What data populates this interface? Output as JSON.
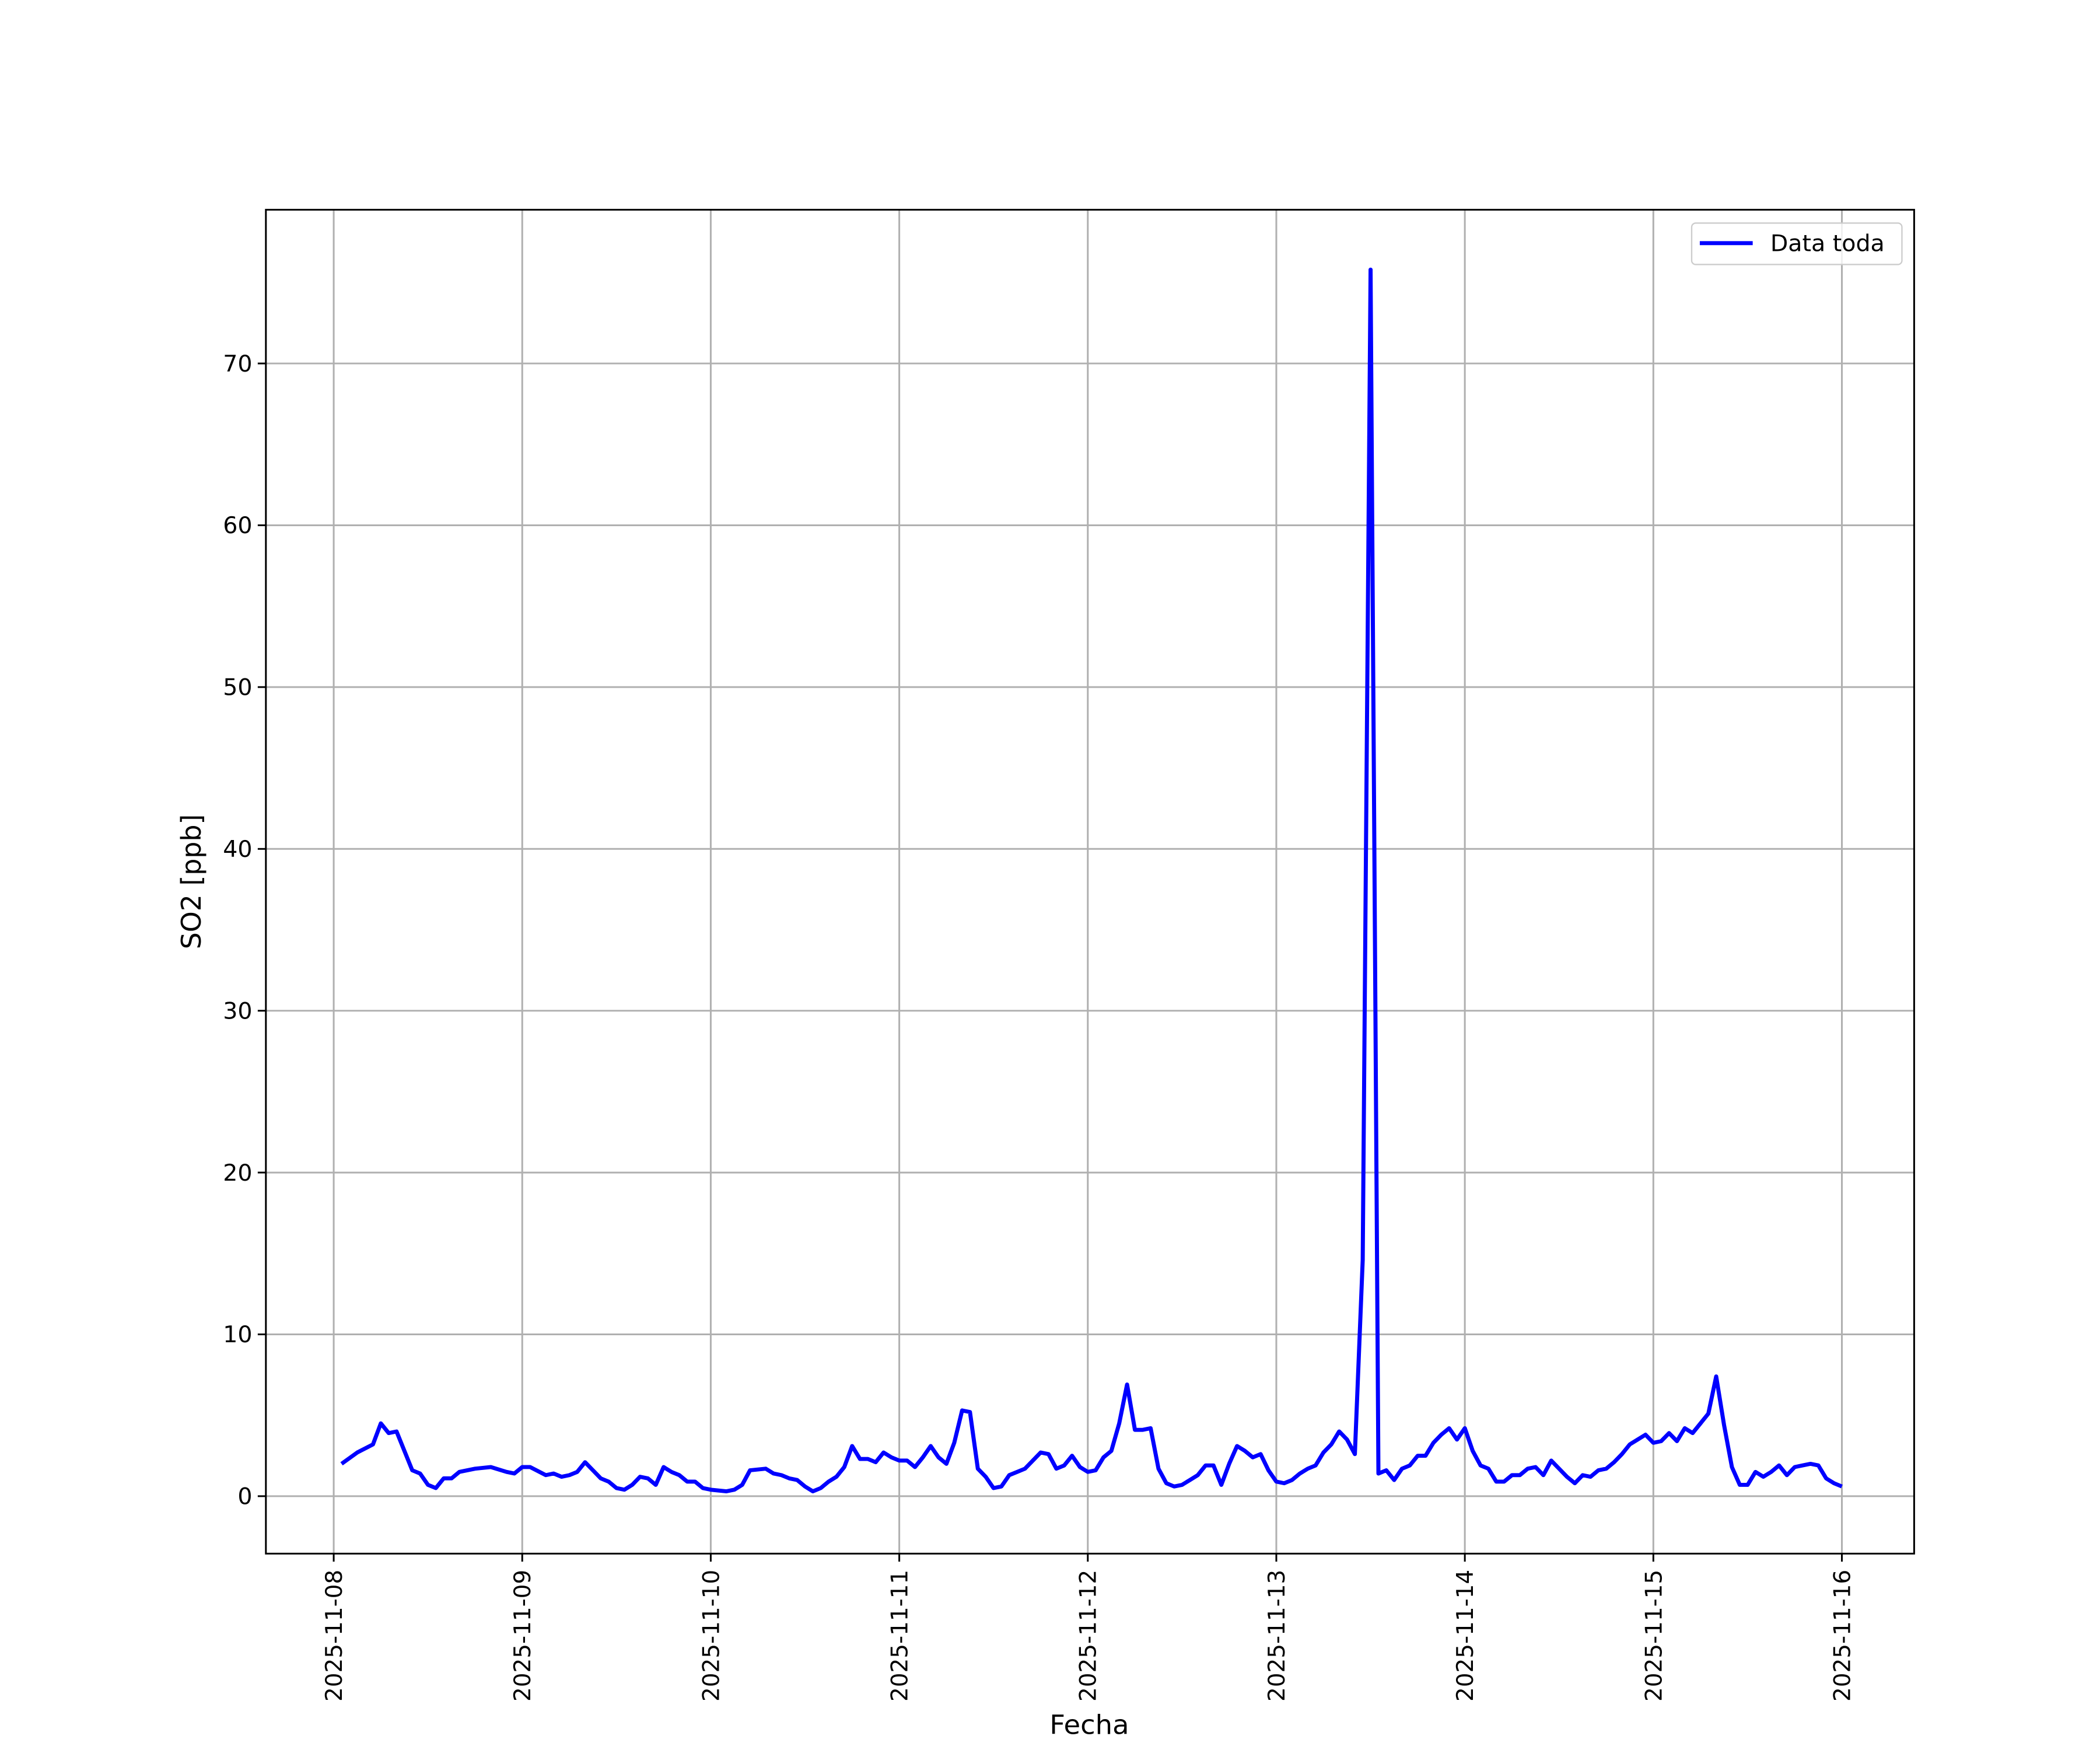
{
  "chart_data": {
    "type": "line",
    "xlabel": "Fecha",
    "ylabel": "SO2 [ppb]",
    "x": [
      "2025-11-08T01:00",
      "2025-11-08T03:00",
      "2025-11-08T05:00",
      "2025-11-08T06:00",
      "2025-11-08T07:00",
      "2025-11-08T08:00",
      "2025-11-08T10:00",
      "2025-11-08T11:00",
      "2025-11-08T12:00",
      "2025-11-08T13:00",
      "2025-11-08T14:00",
      "2025-11-08T15:00",
      "2025-11-08T16:00",
      "2025-11-08T18:00",
      "2025-11-08T20:00",
      "2025-11-08T22:00",
      "2025-11-08T23:00",
      "2025-11-09T00:00",
      "2025-11-09T01:00",
      "2025-11-09T03:00",
      "2025-11-09T04:00",
      "2025-11-09T05:00",
      "2025-11-09T06:00",
      "2025-11-09T07:00",
      "2025-11-09T08:00",
      "2025-11-09T09:00",
      "2025-11-09T10:00",
      "2025-11-09T11:00",
      "2025-11-09T12:00",
      "2025-11-09T13:00",
      "2025-11-09T14:00",
      "2025-11-09T15:00",
      "2025-11-09T16:00",
      "2025-11-09T17:00",
      "2025-11-09T18:00",
      "2025-11-09T19:00",
      "2025-11-09T20:00",
      "2025-11-09T21:00",
      "2025-11-09T22:00",
      "2025-11-09T23:00",
      "2025-11-10T00:00",
      "2025-11-10T02:00",
      "2025-11-10T03:00",
      "2025-11-10T04:00",
      "2025-11-10T05:00",
      "2025-11-10T07:00",
      "2025-11-10T08:00",
      "2025-11-10T09:00",
      "2025-11-10T10:00",
      "2025-11-10T11:00",
      "2025-11-10T12:00",
      "2025-11-10T13:00",
      "2025-11-10T14:00",
      "2025-11-10T15:00",
      "2025-11-10T16:00",
      "2025-11-10T17:00",
      "2025-11-10T18:00",
      "2025-11-10T19:00",
      "2025-11-10T20:00",
      "2025-11-10T21:00",
      "2025-11-10T22:00",
      "2025-11-10T23:00",
      "2025-11-11T00:00",
      "2025-11-11T01:00",
      "2025-11-11T02:00",
      "2025-11-11T03:00",
      "2025-11-11T04:00",
      "2025-11-11T05:00",
      "2025-11-11T06:00",
      "2025-11-11T07:00",
      "2025-11-11T08:00",
      "2025-11-11T09:00",
      "2025-11-11T10:00",
      "2025-11-11T11:00",
      "2025-11-11T12:00",
      "2025-11-11T13:00",
      "2025-11-11T14:00",
      "2025-11-11T15:00",
      "2025-11-11T16:00",
      "2025-11-11T17:00",
      "2025-11-11T18:00",
      "2025-11-11T19:00",
      "2025-11-11T20:00",
      "2025-11-11T21:00",
      "2025-11-11T22:00",
      "2025-11-11T23:00",
      "2025-11-12T00:00",
      "2025-11-12T01:00",
      "2025-11-12T02:00",
      "2025-11-12T03:00",
      "2025-11-12T04:00",
      "2025-11-12T05:00",
      "2025-11-12T06:00",
      "2025-11-12T07:00",
      "2025-11-12T08:00",
      "2025-11-12T09:00",
      "2025-11-12T10:00",
      "2025-11-12T11:00",
      "2025-11-12T12:00",
      "2025-11-12T13:00",
      "2025-11-12T14:00",
      "2025-11-12T15:00",
      "2025-11-12T16:00",
      "2025-11-12T17:00",
      "2025-11-12T18:00",
      "2025-11-12T19:00",
      "2025-11-12T20:00",
      "2025-11-12T21:00",
      "2025-11-12T22:00",
      "2025-11-12T23:00",
      "2025-11-13T00:00",
      "2025-11-13T01:00",
      "2025-11-13T02:00",
      "2025-11-13T03:00",
      "2025-11-13T04:00",
      "2025-11-13T05:00",
      "2025-11-13T06:00",
      "2025-11-13T07:00",
      "2025-11-13T08:00",
      "2025-11-13T09:00",
      "2025-11-13T10:00",
      "2025-11-13T11:00",
      "2025-11-13T12:00",
      "2025-11-13T13:00",
      "2025-11-13T14:00",
      "2025-11-13T15:00",
      "2025-11-13T16:00",
      "2025-11-13T17:00",
      "2025-11-13T18:00",
      "2025-11-13T19:00",
      "2025-11-13T20:00",
      "2025-11-13T21:00",
      "2025-11-13T22:00",
      "2025-11-13T23:00",
      "2025-11-14T00:00",
      "2025-11-14T01:00",
      "2025-11-14T02:00",
      "2025-11-14T03:00",
      "2025-11-14T04:00",
      "2025-11-14T05:00",
      "2025-11-14T06:00",
      "2025-11-14T07:00",
      "2025-11-14T08:00",
      "2025-11-14T09:00",
      "2025-11-14T10:00",
      "2025-11-14T11:00",
      "2025-11-14T12:00",
      "2025-11-14T13:00",
      "2025-11-14T14:00",
      "2025-11-14T15:00",
      "2025-11-14T16:00",
      "2025-11-14T17:00",
      "2025-11-14T18:00",
      "2025-11-14T19:00",
      "2025-11-14T20:00",
      "2025-11-14T21:00",
      "2025-11-14T22:00",
      "2025-11-14T23:00",
      "2025-11-15T00:00",
      "2025-11-15T01:00",
      "2025-11-15T02:00",
      "2025-11-15T03:00",
      "2025-11-15T04:00",
      "2025-11-15T05:00",
      "2025-11-15T06:00",
      "2025-11-15T07:00",
      "2025-11-15T08:00",
      "2025-11-15T09:00",
      "2025-11-15T10:00",
      "2025-11-15T11:00",
      "2025-11-15T12:00",
      "2025-11-15T13:00",
      "2025-11-15T14:00",
      "2025-11-15T15:00",
      "2025-11-15T16:00",
      "2025-11-15T17:00",
      "2025-11-15T18:00",
      "2025-11-15T19:00",
      "2025-11-15T20:00",
      "2025-11-15T21:00",
      "2025-11-15T22:00",
      "2025-11-15T23:00",
      "2025-11-16T00:00"
    ],
    "series": [
      {
        "name": "Data toda",
        "color": "#0000ff",
        "values": [
          2.0,
          2.7,
          3.2,
          4.5,
          3.9,
          4.0,
          1.6,
          1.4,
          0.7,
          0.5,
          1.1,
          1.1,
          1.5,
          1.7,
          1.8,
          1.5,
          1.4,
          1.8,
          1.8,
          1.3,
          1.4,
          1.2,
          1.3,
          1.5,
          2.1,
          1.6,
          1.1,
          0.9,
          0.5,
          0.4,
          0.7,
          1.2,
          1.1,
          0.7,
          1.8,
          1.5,
          1.3,
          0.9,
          0.9,
          0.5,
          0.4,
          0.3,
          0.4,
          0.7,
          1.6,
          1.7,
          1.4,
          1.3,
          1.1,
          1.0,
          0.6,
          0.3,
          0.5,
          0.9,
          1.2,
          1.8,
          3.1,
          2.3,
          2.3,
          2.1,
          2.7,
          2.4,
          2.2,
          2.2,
          1.8,
          2.4,
          3.1,
          2.4,
          2.0,
          3.3,
          5.3,
          5.2,
          1.7,
          1.2,
          0.5,
          0.6,
          1.3,
          1.5,
          1.7,
          2.2,
          2.7,
          2.6,
          1.7,
          1.9,
          2.5,
          1.8,
          1.5,
          1.6,
          2.4,
          2.8,
          4.5,
          6.9,
          4.1,
          4.1,
          4.2,
          1.7,
          0.8,
          0.6,
          0.7,
          1.0,
          1.3,
          1.9,
          1.9,
          0.7,
          2.0,
          3.1,
          2.8,
          2.4,
          2.6,
          1.6,
          0.9,
          0.8,
          1.0,
          1.4,
          1.7,
          1.9,
          2.7,
          3.2,
          4.0,
          3.5,
          2.6,
          14.6,
          75.8,
          1.4,
          1.6,
          1.0,
          1.7,
          1.9,
          2.5,
          2.5,
          3.3,
          3.8,
          4.2,
          3.5,
          4.2,
          2.8,
          1.9,
          1.7,
          0.9,
          0.9,
          1.3,
          1.3,
          1.7,
          1.8,
          1.3,
          2.2,
          1.7,
          1.2,
          0.8,
          1.3,
          1.2,
          1.6,
          1.7,
          2.1,
          2.6,
          3.2,
          3.5,
          3.8,
          3.3,
          3.4,
          3.9,
          3.4,
          4.2,
          3.9,
          4.5,
          5.1,
          7.4,
          4.4,
          1.8,
          0.7,
          0.7,
          1.5,
          1.2,
          1.5,
          1.9,
          1.3,
          1.8,
          1.9,
          2.0,
          1.9,
          1.1,
          0.8,
          0.6
        ]
      }
    ],
    "xlim": [
      "2025-11-07T15:22",
      "2025-11-16T09:12"
    ],
    "xticks": [
      "2025-11-08",
      "2025-11-09",
      "2025-11-10",
      "2025-11-11",
      "2025-11-12",
      "2025-11-13",
      "2025-11-14",
      "2025-11-15",
      "2025-11-16"
    ],
    "ylim": [
      -3.55,
      79.5
    ],
    "yticks": [
      0,
      10,
      20,
      30,
      40,
      50,
      60,
      70
    ],
    "grid": true,
    "legend": "upper right"
  }
}
